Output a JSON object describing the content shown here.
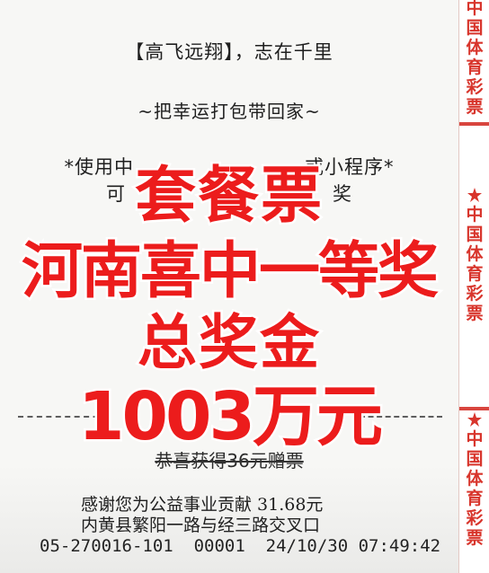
{
  "ticket": {
    "motto": "【高飞远翔】，志在千里",
    "slogan": "~把幸运打包带回家~",
    "notice_line1": "*使用中",
    "notice_line1_end": "或小程序*",
    "notice_line2_start": "可",
    "notice_line2_end": "奖",
    "bonus_line": "恭喜获得36元赠票",
    "thanks_line": "感谢您为公益事业贡献 31.68元",
    "address_line": "内黄县繁阳一路与经三路交叉口",
    "footer_line": "05-270016-101  00001  24/10/30 07:49:42"
  },
  "side_strip": {
    "text": "中国体育彩票",
    "color": "#d8352c"
  },
  "overlay": {
    "line1": "套餐票",
    "line2": "河南喜中一等奖",
    "line3": "总奖金",
    "line4": "1003万元",
    "color": "#ec1c1c"
  }
}
